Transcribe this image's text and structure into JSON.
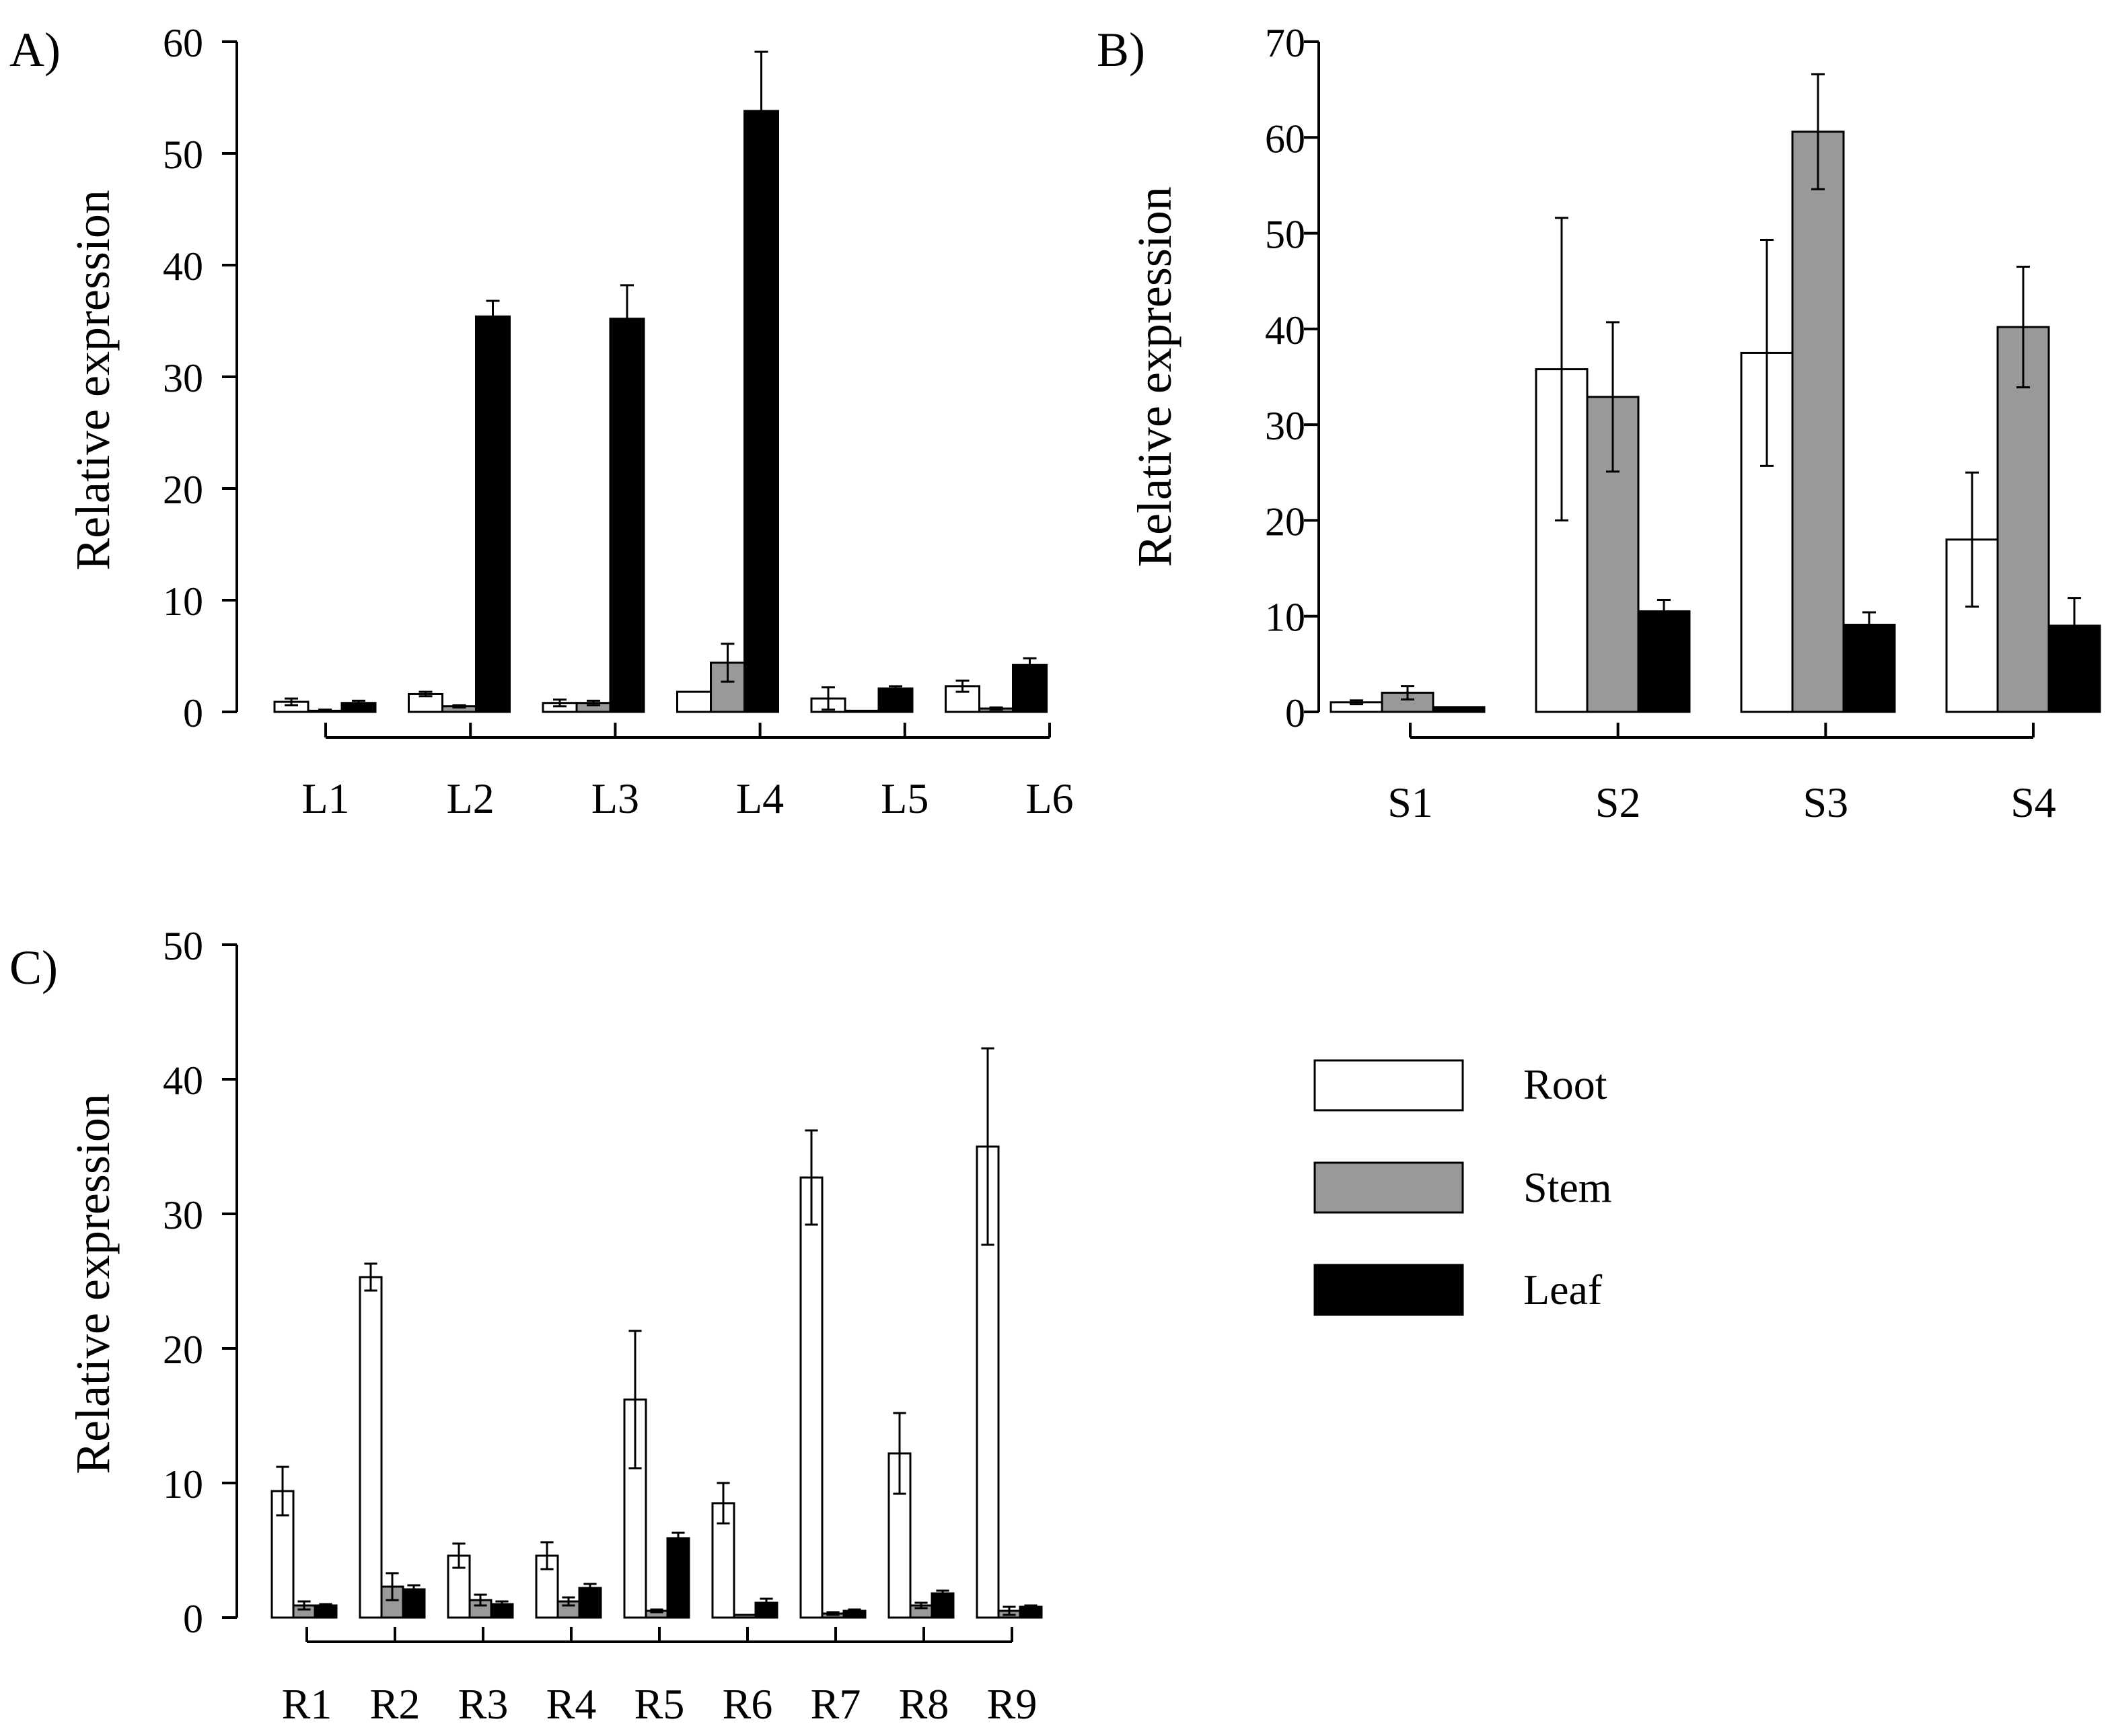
{
  "colors": {
    "Root": "#ffffff",
    "Stem": "#999999",
    "Leaf": "#000000"
  },
  "legend": [
    "Root",
    "Stem",
    "Leaf"
  ],
  "chart_data": [
    {
      "id": "A",
      "panel_label": "A)",
      "type": "bar",
      "ylabel": "Relative expression",
      "ylim": [
        0,
        60
      ],
      "yticks": [
        0,
        10,
        20,
        30,
        40,
        50,
        60
      ],
      "categories": [
        "L1",
        "L2",
        "L3",
        "L4",
        "L5",
        "L6"
      ],
      "series": [
        {
          "name": "Root",
          "values": [
            0.9,
            1.6,
            0.8,
            1.8,
            1.2,
            2.3
          ],
          "errors": [
            0.3,
            0.2,
            0.3,
            0,
            1.0,
            0.5
          ]
        },
        {
          "name": "Stem",
          "values": [
            0.1,
            0.5,
            0.8,
            4.4,
            0.1,
            0.3
          ],
          "errors": [
            0.1,
            0.1,
            0.2,
            1.7,
            0,
            0.1
          ]
        },
        {
          "name": "Leaf",
          "values": [
            0.8,
            35.4,
            35.2,
            53.8,
            2.1,
            4.2
          ],
          "errors": [
            0.2,
            1.4,
            3.0,
            5.3,
            0.2,
            0.6
          ]
        }
      ]
    },
    {
      "id": "B",
      "panel_label": "B)",
      "type": "bar",
      "ylabel": "Relative expression",
      "ylim": [
        0,
        70
      ],
      "yticks": [
        0,
        10,
        20,
        30,
        40,
        50,
        60,
        70
      ],
      "categories": [
        "S1",
        "S2",
        "S3",
        "S4"
      ],
      "series": [
        {
          "name": "Root",
          "values": [
            1.0,
            35.8,
            37.5,
            18.0
          ],
          "errors": [
            0.2,
            15.8,
            11.8,
            7.0
          ]
        },
        {
          "name": "Stem",
          "values": [
            2.0,
            32.9,
            60.6,
            40.2
          ],
          "errors": [
            0.7,
            7.8,
            6.0,
            6.3
          ]
        },
        {
          "name": "Leaf",
          "values": [
            0.5,
            10.5,
            9.1,
            9.0
          ],
          "errors": [
            0,
            1.2,
            1.3,
            2.9
          ]
        }
      ]
    },
    {
      "id": "C",
      "panel_label": "C)",
      "type": "bar",
      "ylabel": "Relative expression",
      "ylim": [
        0,
        50
      ],
      "yticks": [
        0,
        10,
        20,
        30,
        40,
        50
      ],
      "categories": [
        "R1",
        "R2",
        "R3",
        "R4",
        "R5",
        "R6",
        "R7",
        "R8",
        "R9"
      ],
      "series": [
        {
          "name": "Root",
          "values": [
            9.4,
            25.3,
            4.6,
            4.6,
            16.2,
            8.5,
            32.7,
            12.2,
            35.0
          ],
          "errors": [
            1.8,
            1.0,
            0.9,
            1.0,
            5.1,
            1.5,
            3.5,
            3.0,
            7.3
          ]
        },
        {
          "name": "Stem",
          "values": [
            0.9,
            2.3,
            1.3,
            1.2,
            0.5,
            0.2,
            0.3,
            0.9,
            0.5
          ],
          "errors": [
            0.3,
            1.0,
            0.4,
            0.3,
            0.1,
            0,
            0.1,
            0.2,
            0.3
          ]
        },
        {
          "name": "Leaf",
          "values": [
            0.9,
            2.1,
            1.0,
            2.2,
            5.9,
            1.1,
            0.5,
            1.8,
            0.8
          ],
          "errors": [
            0.1,
            0.3,
            0.2,
            0.3,
            0.4,
            0.3,
            0.1,
            0.2,
            0.1
          ]
        }
      ]
    }
  ]
}
